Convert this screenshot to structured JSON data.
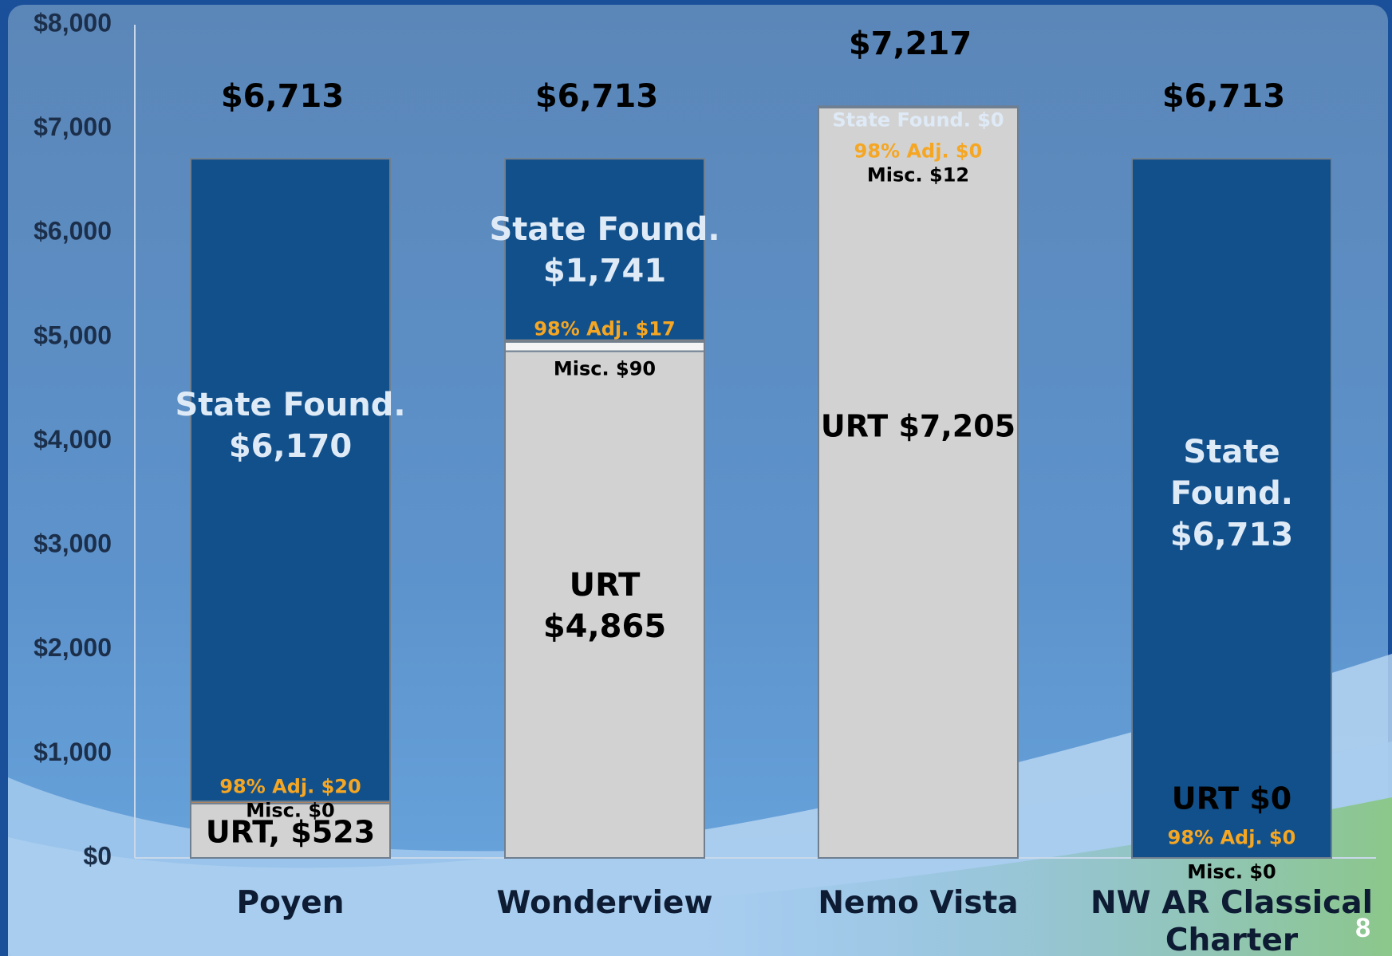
{
  "chart_data": {
    "type": "stacked_bar",
    "categories": [
      "Poyen",
      "Wonderview",
      "Nemo Vista",
      "NW AR Classical Charter"
    ],
    "series": [
      {
        "name": "URT",
        "color": "#d2d2d2",
        "label_color": "#000000",
        "values": [
          523,
          4865,
          7205,
          0
        ],
        "value_labels": [
          "URT, $523",
          "URT\n$4,865",
          "URT $7,205",
          "URT $0"
        ]
      },
      {
        "name": "Misc.",
        "color": "#f4f4f4",
        "label_color": "#000000",
        "values": [
          0,
          90,
          12,
          0
        ],
        "value_labels": [
          "Misc. $0",
          "Misc. $90",
          "Misc. $12",
          "Misc. $0"
        ]
      },
      {
        "name": "98% Adj.",
        "color": "#e0893a",
        "label_color": "#f5a623",
        "values": [
          20,
          17,
          0,
          0
        ],
        "value_labels": [
          "98% Adj. $20",
          "98% Adj. $17",
          "98% Adj. $0",
          "98% Adj. $0"
        ]
      },
      {
        "name": "State Found.",
        "color": "#11508b",
        "label_color": "#dfeaf7",
        "values": [
          6170,
          1741,
          0,
          6713
        ],
        "value_labels": [
          "State Found.\n$6,170",
          "State Found.\n$1,741",
          "State Found. $0",
          "State Found.\n$6,713"
        ]
      }
    ],
    "totals": [
      6713,
      6713,
      7217,
      6713
    ],
    "total_labels": [
      "$6,713",
      "$6,713",
      "$7,217",
      "$6,713"
    ],
    "ylim": [
      0,
      8000
    ],
    "yticks": [
      {
        "value": 0,
        "label": "$0"
      },
      {
        "value": 1000,
        "label": "$1,000"
      },
      {
        "value": 2000,
        "label": "$2,000"
      },
      {
        "value": 3000,
        "label": "$3,000"
      },
      {
        "value": 4000,
        "label": "$4,000"
      },
      {
        "value": 5000,
        "label": "$5,000"
      },
      {
        "value": 6000,
        "label": "$6,000"
      },
      {
        "value": 7000,
        "label": "$7,000"
      },
      {
        "value": 8000,
        "label": "$8,000"
      }
    ],
    "page_number": "8"
  }
}
